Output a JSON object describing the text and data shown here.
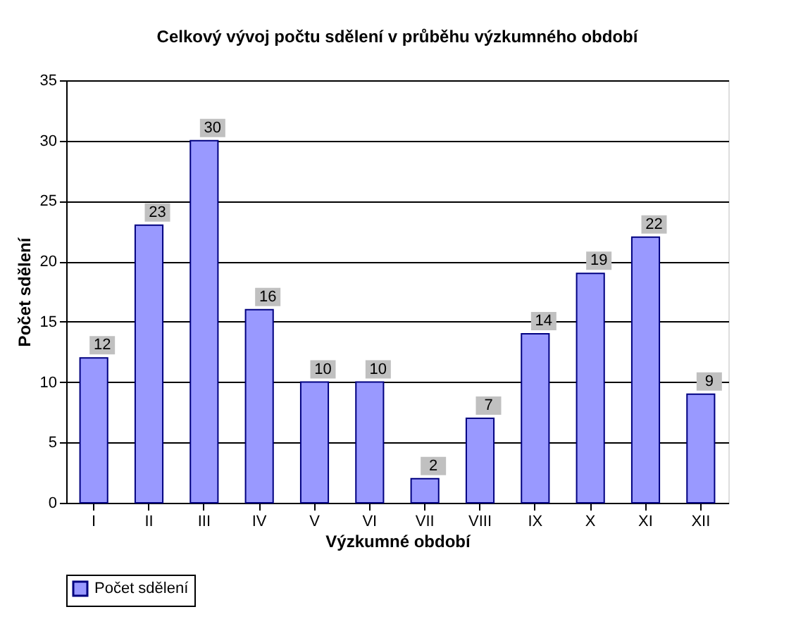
{
  "chart_data": {
    "type": "bar",
    "title": "Celkový vývoj počtu sdělení v průběhu výzkumného období",
    "xlabel": "Výzkumné období",
    "ylabel": "Počet sdělení",
    "categories": [
      "I",
      "II",
      "III",
      "IV",
      "V",
      "VI",
      "VII",
      "VIII",
      "IX",
      "X",
      "XI",
      "XII"
    ],
    "series": [
      {
        "name": "Počet sdělení",
        "color": "#9999ff",
        "values": [
          12,
          23,
          30,
          16,
          10,
          10,
          2,
          7,
          14,
          19,
          22,
          9
        ]
      }
    ],
    "ylim": [
      0,
      35
    ],
    "yticks": [
      0,
      5,
      10,
      15,
      20,
      25,
      30,
      35
    ],
    "grid": "y",
    "legend": "bottom",
    "data_labels": true
  }
}
